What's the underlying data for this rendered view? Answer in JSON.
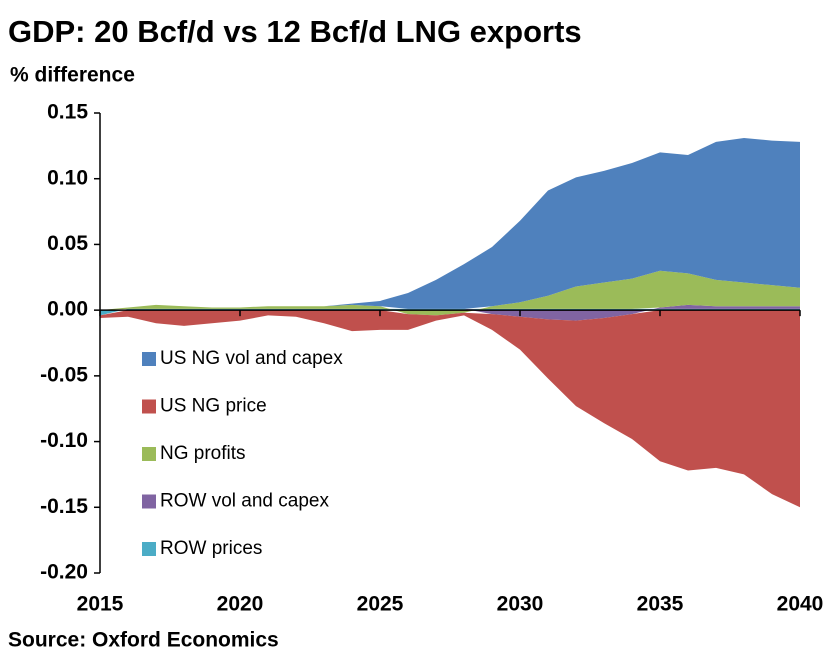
{
  "chart_data": {
    "type": "area",
    "stacked": true,
    "title": "GDP: 20 Bcf/d vs 12 Bcf/d LNG exports",
    "y_label": "% difference",
    "source": "Source: Oxford Economics",
    "x": [
      2015,
      2016,
      2017,
      2018,
      2019,
      2020,
      2021,
      2022,
      2023,
      2024,
      2025,
      2026,
      2027,
      2028,
      2029,
      2030,
      2031,
      2032,
      2033,
      2034,
      2035,
      2036,
      2037,
      2038,
      2039,
      2040
    ],
    "series": [
      {
        "name": "US NG vol and capex",
        "color": "#4f81bd",
        "values": [
          0,
          0,
          0,
          0,
          0,
          0,
          0,
          0,
          0,
          0.001,
          0.004,
          0.012,
          0.022,
          0.034,
          0.045,
          0.062,
          0.08,
          0.083,
          0.085,
          0.088,
          0.09,
          0.09,
          0.105,
          0.11,
          0.11,
          0.111
        ]
      },
      {
        "name": "US NG price",
        "color": "#c0504d",
        "values": [
          -0.002,
          -0.005,
          -0.01,
          -0.012,
          -0.01,
          -0.008,
          -0.004,
          -0.005,
          -0.01,
          -0.016,
          -0.015,
          -0.012,
          -0.004,
          -0.002,
          -0.012,
          -0.025,
          -0.045,
          -0.065,
          -0.08,
          -0.095,
          -0.115,
          -0.122,
          -0.12,
          -0.125,
          -0.14,
          -0.15
        ]
      },
      {
        "name": "NG profits",
        "color": "#9bbb59",
        "values": [
          0,
          0.001,
          0.003,
          0.002,
          0.001,
          0.001,
          0.002,
          0.002,
          0.002,
          0.003,
          0.002,
          -0.003,
          -0.004,
          -0.002,
          0.002,
          0.005,
          0.01,
          0.017,
          0.02,
          0.023,
          0.028,
          0.024,
          0.02,
          0.018,
          0.016,
          0.014
        ]
      },
      {
        "name": "ROW vol and capex",
        "color": "#8064a2",
        "values": [
          0,
          0,
          0,
          0,
          0,
          0,
          0,
          0,
          0,
          0,
          0,
          0,
          0,
          0,
          -0.003,
          -0.005,
          -0.007,
          -0.008,
          -0.006,
          -0.003,
          0.001,
          0.003,
          0.002,
          0.002,
          0.002,
          0.002
        ]
      },
      {
        "name": "ROW prices",
        "color": "#4bacc6",
        "values": [
          -0.004,
          0.001,
          0.001,
          0.001,
          0.001,
          0.001,
          0.001,
          0.001,
          0.001,
          0.001,
          0.001,
          0.001,
          0.001,
          0.001,
          0.001,
          0.001,
          0.001,
          0.001,
          0.001,
          0.001,
          0.001,
          0.001,
          0.001,
          0.001,
          0.001,
          0.001
        ]
      }
    ],
    "xlim": [
      2015,
      2040
    ],
    "xticks": [
      2015,
      2020,
      2025,
      2030,
      2035,
      2040
    ],
    "ylim": [
      -0.2,
      0.15
    ],
    "yticks": [
      {
        "value": 0.15,
        "label": "0.15"
      },
      {
        "value": 0.1,
        "label": "0.10"
      },
      {
        "value": 0.05,
        "label": "0.05"
      },
      {
        "value": 0,
        "label": "0.00"
      },
      {
        "value": -0.05,
        "label": "-0.05"
      },
      {
        "value": -0.1,
        "label": "-0.10"
      },
      {
        "value": -0.15,
        "label": "-0.15"
      },
      {
        "value": -0.2,
        "label": "-0.20"
      }
    ],
    "legend": "inside-left"
  }
}
